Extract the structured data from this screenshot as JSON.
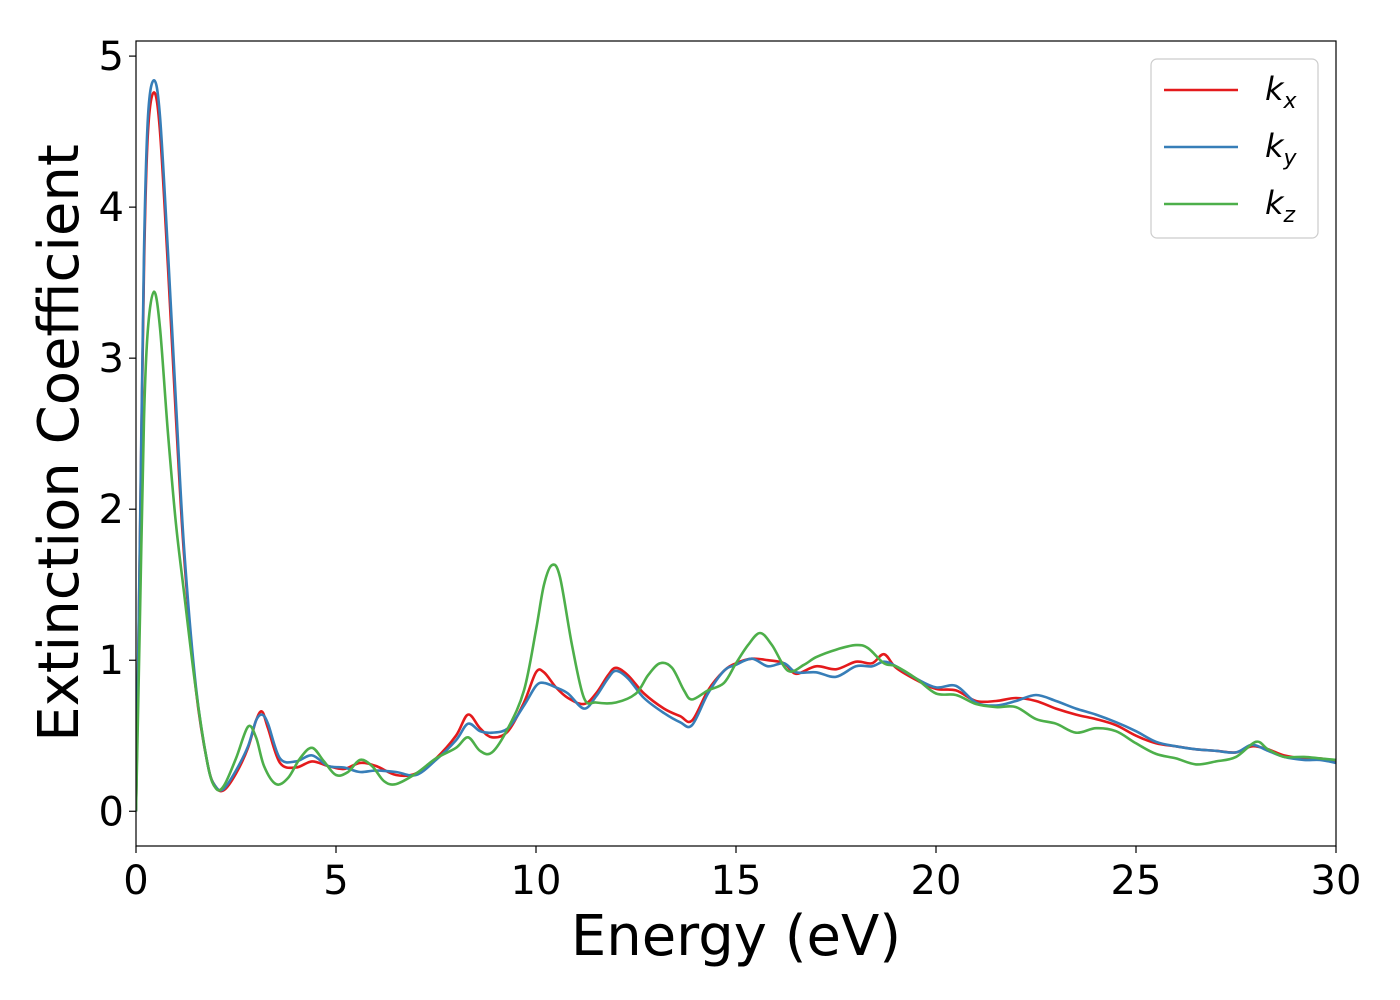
{
  "chart_data": {
    "type": "line",
    "title": "",
    "xlabel": "Energy (eV)",
    "ylabel": "Extinction Coefficient",
    "xlim": [
      0,
      30
    ],
    "ylim": [
      -0.23,
      5.1
    ],
    "xticks": [
      0,
      5,
      10,
      15,
      20,
      25,
      30
    ],
    "yticks": [
      0,
      1,
      2,
      3,
      4,
      5
    ],
    "grid": false,
    "legend_position": "top-right",
    "series": [
      {
        "name": "k_x",
        "legend_base": "k",
        "legend_sub": "x",
        "color": "#e41a1c",
        "points": [
          [
            0,
            0
          ],
          [
            0.1,
            1.8
          ],
          [
            0.2,
            3.6
          ],
          [
            0.3,
            4.5
          ],
          [
            0.45,
            4.76
          ],
          [
            0.6,
            4.5
          ],
          [
            0.8,
            3.6
          ],
          [
            1.0,
            2.6
          ],
          [
            1.2,
            1.7
          ],
          [
            1.5,
            0.8
          ],
          [
            1.8,
            0.3
          ],
          [
            2.0,
            0.16
          ],
          [
            2.2,
            0.14
          ],
          [
            2.5,
            0.25
          ],
          [
            2.8,
            0.42
          ],
          [
            3.0,
            0.6
          ],
          [
            3.15,
            0.66
          ],
          [
            3.3,
            0.55
          ],
          [
            3.6,
            0.32
          ],
          [
            4.0,
            0.29
          ],
          [
            4.4,
            0.33
          ],
          [
            4.8,
            0.3
          ],
          [
            5.2,
            0.28
          ],
          [
            5.6,
            0.32
          ],
          [
            6.0,
            0.3
          ],
          [
            6.5,
            0.24
          ],
          [
            7.0,
            0.25
          ],
          [
            7.5,
            0.35
          ],
          [
            8.0,
            0.5
          ],
          [
            8.3,
            0.64
          ],
          [
            8.6,
            0.55
          ],
          [
            8.9,
            0.49
          ],
          [
            9.3,
            0.53
          ],
          [
            9.7,
            0.72
          ],
          [
            10.0,
            0.92
          ],
          [
            10.2,
            0.92
          ],
          [
            10.5,
            0.82
          ],
          [
            10.8,
            0.75
          ],
          [
            11.2,
            0.71
          ],
          [
            11.5,
            0.78
          ],
          [
            11.8,
            0.9
          ],
          [
            12.0,
            0.95
          ],
          [
            12.3,
            0.9
          ],
          [
            12.7,
            0.78
          ],
          [
            13.2,
            0.68
          ],
          [
            13.6,
            0.63
          ],
          [
            13.9,
            0.6
          ],
          [
            14.3,
            0.8
          ],
          [
            14.7,
            0.93
          ],
          [
            15.0,
            0.98
          ],
          [
            15.4,
            1.01
          ],
          [
            15.8,
            1.0
          ],
          [
            16.2,
            0.98
          ],
          [
            16.5,
            0.91
          ],
          [
            17.0,
            0.96
          ],
          [
            17.5,
            0.94
          ],
          [
            18.0,
            0.99
          ],
          [
            18.4,
            0.98
          ],
          [
            18.7,
            1.04
          ],
          [
            19.0,
            0.95
          ],
          [
            19.5,
            0.87
          ],
          [
            20.0,
            0.81
          ],
          [
            20.5,
            0.8
          ],
          [
            21.0,
            0.73
          ],
          [
            21.5,
            0.73
          ],
          [
            22.0,
            0.75
          ],
          [
            22.5,
            0.73
          ],
          [
            23.0,
            0.68
          ],
          [
            23.5,
            0.64
          ],
          [
            24.0,
            0.61
          ],
          [
            24.5,
            0.57
          ],
          [
            25.0,
            0.5
          ],
          [
            25.5,
            0.45
          ],
          [
            26.0,
            0.43
          ],
          [
            26.5,
            0.41
          ],
          [
            27.0,
            0.4
          ],
          [
            27.5,
            0.39
          ],
          [
            27.9,
            0.43
          ],
          [
            28.3,
            0.41
          ],
          [
            28.7,
            0.37
          ],
          [
            29.2,
            0.35
          ],
          [
            29.6,
            0.35
          ],
          [
            30.0,
            0.33
          ]
        ]
      },
      {
        "name": "k_y",
        "legend_base": "k",
        "legend_sub": "y",
        "color": "#377eb8",
        "points": [
          [
            0,
            0
          ],
          [
            0.1,
            1.85
          ],
          [
            0.2,
            3.7
          ],
          [
            0.3,
            4.6
          ],
          [
            0.45,
            4.84
          ],
          [
            0.6,
            4.6
          ],
          [
            0.8,
            3.7
          ],
          [
            1.0,
            2.7
          ],
          [
            1.2,
            1.75
          ],
          [
            1.5,
            0.82
          ],
          [
            1.8,
            0.3
          ],
          [
            2.0,
            0.16
          ],
          [
            2.2,
            0.15
          ],
          [
            2.5,
            0.27
          ],
          [
            2.8,
            0.43
          ],
          [
            3.0,
            0.6
          ],
          [
            3.15,
            0.64
          ],
          [
            3.3,
            0.58
          ],
          [
            3.6,
            0.35
          ],
          [
            4.0,
            0.33
          ],
          [
            4.4,
            0.37
          ],
          [
            4.8,
            0.3
          ],
          [
            5.2,
            0.29
          ],
          [
            5.6,
            0.26
          ],
          [
            6.0,
            0.27
          ],
          [
            6.5,
            0.26
          ],
          [
            7.0,
            0.24
          ],
          [
            7.5,
            0.34
          ],
          [
            8.0,
            0.47
          ],
          [
            8.3,
            0.58
          ],
          [
            8.6,
            0.53
          ],
          [
            8.9,
            0.52
          ],
          [
            9.3,
            0.55
          ],
          [
            9.7,
            0.7
          ],
          [
            10.0,
            0.83
          ],
          [
            10.2,
            0.85
          ],
          [
            10.5,
            0.82
          ],
          [
            10.8,
            0.78
          ],
          [
            11.2,
            0.68
          ],
          [
            11.5,
            0.76
          ],
          [
            11.8,
            0.88
          ],
          [
            12.0,
            0.93
          ],
          [
            12.3,
            0.88
          ],
          [
            12.7,
            0.75
          ],
          [
            13.2,
            0.65
          ],
          [
            13.6,
            0.59
          ],
          [
            13.9,
            0.57
          ],
          [
            14.3,
            0.78
          ],
          [
            14.7,
            0.93
          ],
          [
            15.0,
            0.97
          ],
          [
            15.4,
            1.01
          ],
          [
            15.8,
            0.96
          ],
          [
            16.2,
            0.98
          ],
          [
            16.5,
            0.92
          ],
          [
            17.0,
            0.92
          ],
          [
            17.5,
            0.89
          ],
          [
            18.0,
            0.96
          ],
          [
            18.4,
            0.96
          ],
          [
            18.7,
            0.99
          ],
          [
            19.0,
            0.96
          ],
          [
            19.5,
            0.88
          ],
          [
            20.0,
            0.82
          ],
          [
            20.5,
            0.83
          ],
          [
            21.0,
            0.72
          ],
          [
            21.5,
            0.7
          ],
          [
            22.0,
            0.73
          ],
          [
            22.5,
            0.77
          ],
          [
            23.0,
            0.73
          ],
          [
            23.5,
            0.68
          ],
          [
            24.0,
            0.64
          ],
          [
            24.5,
            0.59
          ],
          [
            25.0,
            0.53
          ],
          [
            25.5,
            0.46
          ],
          [
            26.0,
            0.43
          ],
          [
            26.5,
            0.41
          ],
          [
            27.0,
            0.4
          ],
          [
            27.5,
            0.39
          ],
          [
            27.9,
            0.44
          ],
          [
            28.3,
            0.4
          ],
          [
            28.7,
            0.36
          ],
          [
            29.2,
            0.34
          ],
          [
            29.6,
            0.34
          ],
          [
            30.0,
            0.32
          ]
        ]
      },
      {
        "name": "k_z",
        "legend_base": "k",
        "legend_sub": "z",
        "color": "#4daf4a",
        "points": [
          [
            0,
            0
          ],
          [
            0.1,
            1.3
          ],
          [
            0.2,
            2.6
          ],
          [
            0.3,
            3.2
          ],
          [
            0.45,
            3.44
          ],
          [
            0.6,
            3.2
          ],
          [
            0.8,
            2.5
          ],
          [
            1.0,
            1.9
          ],
          [
            1.2,
            1.45
          ],
          [
            1.5,
            0.8
          ],
          [
            1.8,
            0.3
          ],
          [
            2.0,
            0.15
          ],
          [
            2.2,
            0.17
          ],
          [
            2.5,
            0.35
          ],
          [
            2.8,
            0.56
          ],
          [
            3.0,
            0.49
          ],
          [
            3.2,
            0.3
          ],
          [
            3.5,
            0.18
          ],
          [
            3.8,
            0.22
          ],
          [
            4.1,
            0.35
          ],
          [
            4.4,
            0.42
          ],
          [
            4.7,
            0.33
          ],
          [
            5.0,
            0.24
          ],
          [
            5.3,
            0.26
          ],
          [
            5.6,
            0.34
          ],
          [
            5.9,
            0.3
          ],
          [
            6.2,
            0.2
          ],
          [
            6.5,
            0.18
          ],
          [
            7.0,
            0.25
          ],
          [
            7.5,
            0.35
          ],
          [
            8.0,
            0.42
          ],
          [
            8.3,
            0.49
          ],
          [
            8.6,
            0.4
          ],
          [
            8.9,
            0.39
          ],
          [
            9.3,
            0.55
          ],
          [
            9.7,
            0.8
          ],
          [
            10.0,
            1.2
          ],
          [
            10.2,
            1.5
          ],
          [
            10.4,
            1.63
          ],
          [
            10.6,
            1.55
          ],
          [
            10.9,
            1.1
          ],
          [
            11.2,
            0.75
          ],
          [
            11.5,
            0.72
          ],
          [
            12.0,
            0.72
          ],
          [
            12.5,
            0.78
          ],
          [
            12.8,
            0.9
          ],
          [
            13.1,
            0.98
          ],
          [
            13.4,
            0.95
          ],
          [
            13.7,
            0.8
          ],
          [
            13.9,
            0.74
          ],
          [
            14.3,
            0.8
          ],
          [
            14.7,
            0.85
          ],
          [
            15.0,
            0.98
          ],
          [
            15.3,
            1.1
          ],
          [
            15.6,
            1.18
          ],
          [
            15.9,
            1.1
          ],
          [
            16.3,
            0.93
          ],
          [
            16.7,
            0.97
          ],
          [
            17.0,
            1.02
          ],
          [
            17.5,
            1.07
          ],
          [
            18.0,
            1.1
          ],
          [
            18.3,
            1.08
          ],
          [
            18.7,
            0.98
          ],
          [
            19.0,
            0.96
          ],
          [
            19.5,
            0.88
          ],
          [
            20.0,
            0.78
          ],
          [
            20.5,
            0.77
          ],
          [
            21.0,
            0.71
          ],
          [
            21.5,
            0.69
          ],
          [
            22.0,
            0.69
          ],
          [
            22.5,
            0.61
          ],
          [
            23.0,
            0.58
          ],
          [
            23.5,
            0.52
          ],
          [
            24.0,
            0.55
          ],
          [
            24.5,
            0.53
          ],
          [
            25.0,
            0.45
          ],
          [
            25.5,
            0.38
          ],
          [
            26.0,
            0.35
          ],
          [
            26.5,
            0.31
          ],
          [
            27.0,
            0.33
          ],
          [
            27.5,
            0.36
          ],
          [
            28.0,
            0.46
          ],
          [
            28.3,
            0.41
          ],
          [
            28.7,
            0.36
          ],
          [
            29.2,
            0.36
          ],
          [
            29.6,
            0.35
          ],
          [
            30.0,
            0.34
          ]
        ]
      }
    ]
  }
}
